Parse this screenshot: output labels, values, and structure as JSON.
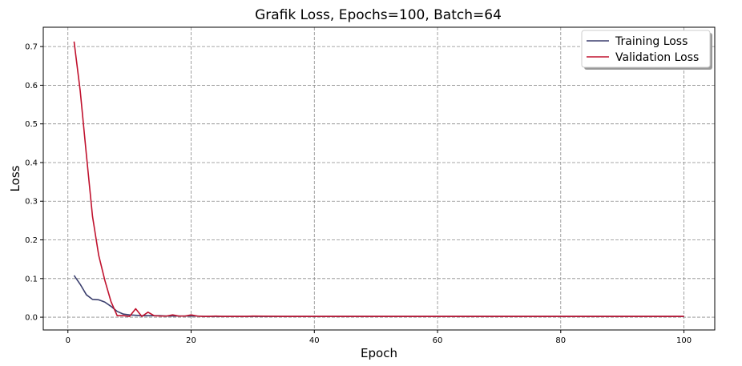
{
  "chart_data": {
    "type": "line",
    "title": "Grafik Loss, Epochs=100, Batch=64",
    "xlabel": "Epoch",
    "ylabel": "Loss",
    "xlim": [
      -4,
      105
    ],
    "ylim": [
      -0.033,
      0.75
    ],
    "xticks": [
      0,
      20,
      40,
      60,
      80,
      100
    ],
    "yticks": [
      0.0,
      0.1,
      0.2,
      0.3,
      0.4,
      0.5,
      0.6,
      0.7
    ],
    "ytick_labels": [
      "0.0",
      "0.1",
      "0.2",
      "0.3",
      "0.4",
      "0.5",
      "0.6",
      "0.7"
    ],
    "grid": true,
    "legend_position": "top-right",
    "series": [
      {
        "name": "Training Loss",
        "color": "#3b3f6e",
        "x": [
          1,
          2,
          3,
          4,
          5,
          6,
          7,
          8,
          9,
          10,
          11,
          12,
          13,
          14,
          15,
          16,
          17,
          18,
          19,
          20,
          21,
          22,
          23,
          24,
          25,
          26,
          27,
          28,
          29,
          30,
          35,
          40,
          50,
          60,
          70,
          80,
          90,
          100
        ],
        "y": [
          0.108,
          0.085,
          0.058,
          0.046,
          0.045,
          0.039,
          0.028,
          0.015,
          0.008,
          0.006,
          0.005,
          0.004,
          0.004,
          0.004,
          0.004,
          0.003,
          0.003,
          0.003,
          0.003,
          0.003,
          0.003,
          0.002,
          0.002,
          0.002,
          0.002,
          0.002,
          0.002,
          0.002,
          0.002,
          0.002,
          0.002,
          0.002,
          0.002,
          0.002,
          0.002,
          0.002,
          0.002,
          0.002
        ]
      },
      {
        "name": "Validation Loss",
        "color": "#c0122e",
        "x": [
          1,
          2,
          3,
          4,
          5,
          6,
          7,
          8,
          9,
          10,
          11,
          12,
          13,
          14,
          15,
          16,
          17,
          18,
          19,
          20,
          21,
          22,
          23,
          24,
          25,
          26,
          27,
          28,
          29,
          30,
          35,
          40,
          50,
          60,
          70,
          80,
          90,
          100
        ],
        "y": [
          0.713,
          0.585,
          0.42,
          0.26,
          0.16,
          0.095,
          0.04,
          0.004,
          0.004,
          0.002,
          0.022,
          0.002,
          0.013,
          0.004,
          0.003,
          0.003,
          0.006,
          0.003,
          0.003,
          0.006,
          0.003,
          0.002,
          0.002,
          0.003,
          0.002,
          0.002,
          0.002,
          0.002,
          0.002,
          0.003,
          0.002,
          0.002,
          0.002,
          0.002,
          0.002,
          0.002,
          0.002,
          0.002
        ]
      }
    ]
  }
}
